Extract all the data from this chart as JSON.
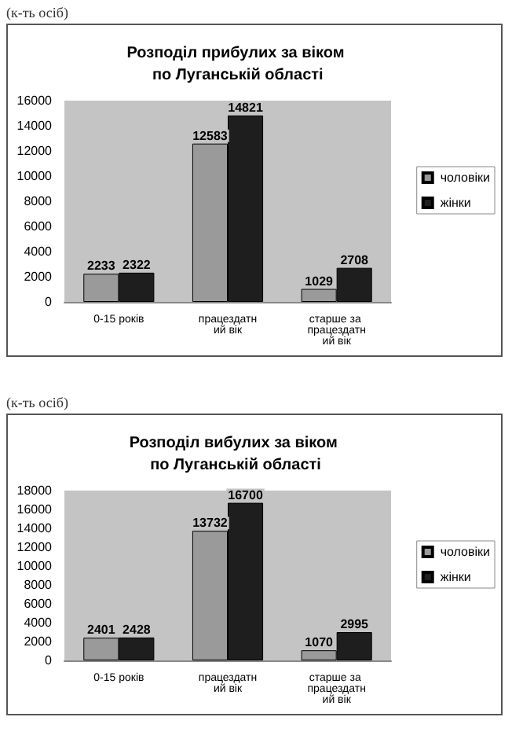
{
  "chart_data": [
    {
      "type": "bar",
      "title": "Розподіл прибулих за віком по Луганській області",
      "annotations": [
        "(к-ть осіб)"
      ],
      "categories": [
        "0-15 років",
        "працездатний вік",
        "старше за працездатний вік"
      ],
      "series": [
        {
          "name": "чоловіки",
          "color": "#9a9a9a",
          "values": [
            2233,
            12583,
            1029
          ]
        },
        {
          "name": "жінки",
          "color": "#1e1e1e",
          "values": [
            2322,
            14821,
            2708
          ]
        }
      ],
      "ylim": [
        0,
        16000
      ],
      "yticks": [
        0,
        2000,
        4000,
        6000,
        8000,
        10000,
        12000,
        14000,
        16000
      ],
      "grid": false,
      "legend": "right",
      "data_labels": true
    },
    {
      "type": "bar",
      "title": "Розподіл вибулих за віком по Луганській області",
      "annotations": [
        "(к-ть осіб)"
      ],
      "categories": [
        "0-15 років",
        "працездатний вік",
        "старше за працездатний вік"
      ],
      "series": [
        {
          "name": "чоловіки",
          "color": "#9a9a9a",
          "values": [
            2401,
            13732,
            1070
          ]
        },
        {
          "name": "жінки",
          "color": "#1e1e1e",
          "values": [
            2428,
            16700,
            2995
          ]
        }
      ],
      "ylim": [
        0,
        18000
      ],
      "yticks": [
        0,
        2000,
        4000,
        6000,
        8000,
        10000,
        12000,
        14000,
        16000,
        18000
      ],
      "grid": false,
      "legend": "right",
      "data_labels": true
    }
  ]
}
